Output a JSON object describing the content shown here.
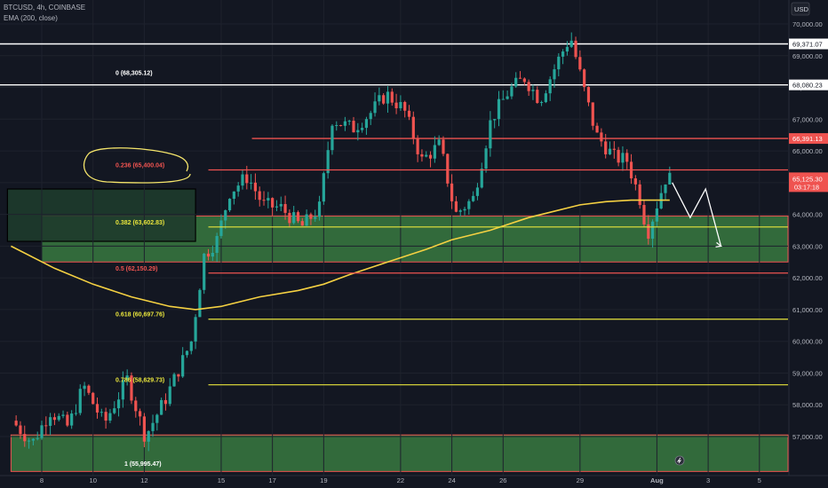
{
  "header": {
    "symbol_line": "BTCUSD, 4h, COINBASE",
    "indicator_line": "EMA (200, close)"
  },
  "currency_label": "USD",
  "colors": {
    "background": "#131722",
    "up": "#26a69a",
    "down": "#ef5350",
    "ema": "#f5d142",
    "fib_red": "#ef5350",
    "fib_yellow": "#e8e43c",
    "white_line": "#ffffff",
    "zone_fill": "#4caf50"
  },
  "chart_data": {
    "type": "candlestick",
    "symbol": "BTCUSD",
    "timeframe": "4h",
    "exchange": "COINBASE",
    "ylim": [
      56500,
      70200
    ],
    "y_ticks": [
      57000,
      58000,
      59000,
      60000,
      61000,
      62000,
      63000,
      64000,
      65000,
      66000,
      67000,
      68000,
      69000,
      70000
    ],
    "y_tick_labels": [
      "57,000.00",
      "58,000.00",
      "59,000.00",
      "60,000.00",
      "61,000.00",
      "62,000.00",
      "63,000.00",
      "64,000.00",
      "65,000.00",
      "66,000.00",
      "67,000.00",
      "68,000.00",
      "69,000.00",
      "70,000.00"
    ],
    "x_range": [
      "Jul 7",
      "Aug 5"
    ],
    "x_ticks": [
      {
        "label": "8",
        "day": 8
      },
      {
        "label": "10",
        "day": 10
      },
      {
        "label": "12",
        "day": 12
      },
      {
        "label": "15",
        "day": 15
      },
      {
        "label": "17",
        "day": 17
      },
      {
        "label": "19",
        "day": 19
      },
      {
        "label": "22",
        "day": 22
      },
      {
        "label": "24",
        "day": 24
      },
      {
        "label": "26",
        "day": 26
      },
      {
        "label": "29",
        "day": 29
      },
      {
        "label": "Aug",
        "day": 32
      },
      {
        "label": "3",
        "day": 34
      },
      {
        "label": "5",
        "day": 36
      }
    ],
    "anchors": [
      {
        "day": 7.0,
        "price": 57500
      },
      {
        "day": 7.8,
        "price": 56800
      },
      {
        "day": 8.5,
        "price": 57800
      },
      {
        "day": 9.2,
        "price": 57300
      },
      {
        "day": 9.8,
        "price": 58600
      },
      {
        "day": 10.6,
        "price": 57400
      },
      {
        "day": 11.5,
        "price": 58800
      },
      {
        "day": 12.2,
        "price": 57000
      },
      {
        "day": 13.0,
        "price": 58200
      },
      {
        "day": 14.0,
        "price": 60000
      },
      {
        "day": 14.5,
        "price": 62700
      },
      {
        "day": 15.0,
        "price": 63200
      },
      {
        "day": 15.5,
        "price": 64700
      },
      {
        "day": 16.2,
        "price": 65200
      },
      {
        "day": 16.8,
        "price": 64300
      },
      {
        "day": 17.5,
        "price": 64200
      },
      {
        "day": 18.3,
        "price": 63600
      },
      {
        "day": 19.0,
        "price": 64200
      },
      {
        "day": 19.5,
        "price": 67000
      },
      {
        "day": 20.3,
        "price": 66700
      },
      {
        "day": 21.0,
        "price": 67200
      },
      {
        "day": 21.6,
        "price": 67800
      },
      {
        "day": 22.3,
        "price": 67300
      },
      {
        "day": 23.0,
        "price": 65700
      },
      {
        "day": 23.7,
        "price": 66200
      },
      {
        "day": 24.3,
        "price": 64000
      },
      {
        "day": 25.0,
        "price": 64500
      },
      {
        "day": 25.7,
        "price": 67000
      },
      {
        "day": 26.4,
        "price": 67900
      },
      {
        "day": 27.0,
        "price": 68300
      },
      {
        "day": 27.6,
        "price": 67600
      },
      {
        "day": 28.4,
        "price": 69000
      },
      {
        "day": 28.8,
        "price": 69600
      },
      {
        "day": 29.3,
        "price": 68000
      },
      {
        "day": 29.8,
        "price": 66500
      },
      {
        "day": 30.5,
        "price": 65800
      },
      {
        "day": 31.0,
        "price": 65700
      },
      {
        "day": 31.5,
        "price": 64500
      },
      {
        "day": 31.8,
        "price": 63400
      },
      {
        "day": 32.2,
        "price": 64400
      },
      {
        "day": 32.5,
        "price": 65125
      }
    ],
    "ema": {
      "name": "EMA (200, close)",
      "points": [
        {
          "day": 6.8,
          "price": 63000
        },
        {
          "day": 8.5,
          "price": 62300
        },
        {
          "day": 10.0,
          "price": 61800
        },
        {
          "day": 11.5,
          "price": 61400
        },
        {
          "day": 13.0,
          "price": 61100
        },
        {
          "day": 14.0,
          "price": 61000
        },
        {
          "day": 15.0,
          "price": 61100
        },
        {
          "day": 16.5,
          "price": 61400
        },
        {
          "day": 18.0,
          "price": 61600
        },
        {
          "day": 19.0,
          "price": 61800
        },
        {
          "day": 20.0,
          "price": 62100
        },
        {
          "day": 21.5,
          "price": 62500
        },
        {
          "day": 23.0,
          "price": 62900
        },
        {
          "day": 24.0,
          "price": 63200
        },
        {
          "day": 25.5,
          "price": 63500
        },
        {
          "day": 27.0,
          "price": 63900
        },
        {
          "day": 28.0,
          "price": 64100
        },
        {
          "day": 29.0,
          "price": 64300
        },
        {
          "day": 30.0,
          "price": 64400
        },
        {
          "day": 31.0,
          "price": 64450
        },
        {
          "day": 32.5,
          "price": 64450
        }
      ]
    },
    "fib_levels": [
      {
        "ratio": "0",
        "price": 68305.12,
        "label": "0 (68,305.12)",
        "color": "#ffffff"
      },
      {
        "ratio": "0.236",
        "price": 65400.04,
        "label": "0.236 (65,400.04)",
        "color": "#ef5350"
      },
      {
        "ratio": "0.382",
        "price": 63602.83,
        "label": "0.382 (63,602.83)",
        "color": "#e8e43c"
      },
      {
        "ratio": "0.5",
        "price": 62150.29,
        "label": "0.5 (62,150.29)",
        "color": "#ef5350"
      },
      {
        "ratio": "0.618",
        "price": 60697.76,
        "label": "0.618 (60,697.76)",
        "color": "#e8e43c"
      },
      {
        "ratio": "0.786",
        "price": 58629.73,
        "label": "0.786 (58,629.73)",
        "color": "#e8e43c"
      },
      {
        "ratio": "1",
        "price": 55995.47,
        "label": "1 (55,995.47)",
        "color": "#ffffff"
      }
    ],
    "horizontal_lines": [
      {
        "price": 69371.07,
        "label": "69,371.07",
        "color": "#ffffff"
      },
      {
        "price": 68080.23,
        "label": "68,080.23",
        "color": "#ffffff"
      },
      {
        "price": 66391.13,
        "label": "66,391.13",
        "color": "#ef5350"
      }
    ],
    "zones": [
      {
        "low": 62500,
        "high": 63950,
        "from_day": 8.0,
        "to_day": 37,
        "color": "#4caf50"
      },
      {
        "low": 55900,
        "high": 57050,
        "from_day": 6.8,
        "to_day": 37,
        "color": "#4caf50"
      }
    ],
    "boxes": [
      {
        "low": 63150,
        "high": 64800,
        "from_day": 6.8,
        "to_day": 14.0,
        "color": "#1e3b2c"
      }
    ],
    "last_price": {
      "price": 65125.3,
      "label": "65,125.30",
      "countdown": "03:17:18"
    },
    "projection": {
      "points": [
        {
          "day": 32.6,
          "price": 65000
        },
        {
          "day": 33.3,
          "price": 63900
        },
        {
          "day": 33.9,
          "price": 64800
        },
        {
          "day": 34.5,
          "price": 63000
        }
      ]
    }
  }
}
